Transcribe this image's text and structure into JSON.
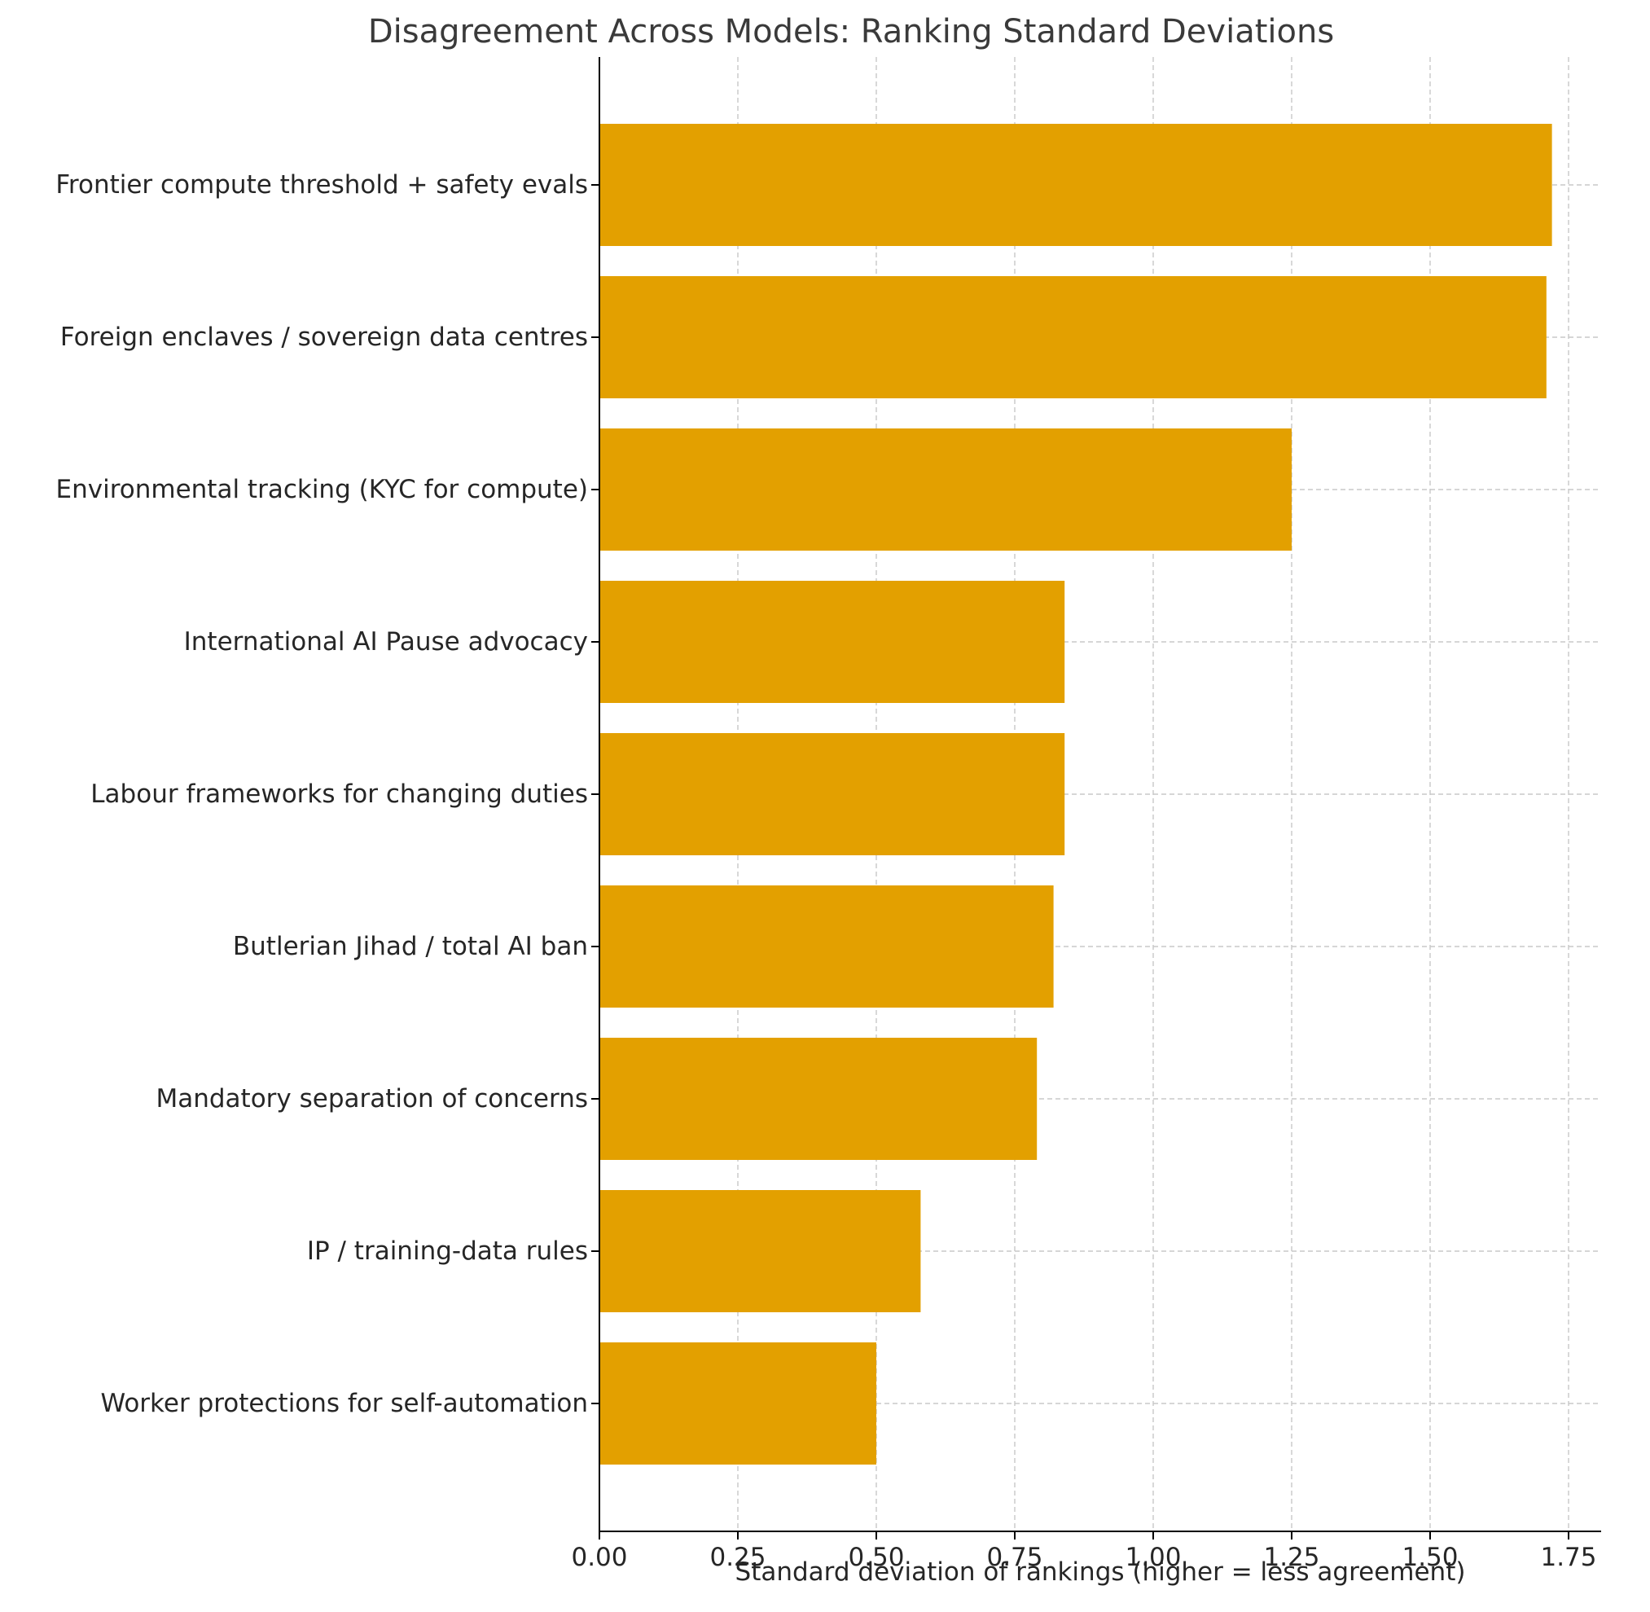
{
  "chart_data": {
    "type": "bar",
    "orientation": "horizontal",
    "title": "Disagreement Across Models: Ranking Standard Deviations",
    "xlabel": "Standard deviation of rankings (higher = less agreement)",
    "ylabel": "",
    "xlim": [
      0,
      1.8
    ],
    "xticks": [
      0.0,
      0.25,
      0.5,
      0.75,
      1.0,
      1.25,
      1.5,
      1.75
    ],
    "xtick_labels": [
      "0.00",
      "0.25",
      "0.50",
      "0.75",
      "1.00",
      "1.25",
      "1.50",
      "1.75"
    ],
    "grid": true,
    "bar_color": "#E3A000",
    "categories": [
      "Frontier compute threshold + safety evals",
      "Foreign enclaves / sovereign data centres",
      "Environmental tracking (KYC for compute)",
      "International AI Pause advocacy",
      "Labour frameworks for changing duties",
      "Butlerian Jihad / total AI ban",
      "Mandatory separation of concerns",
      "IP / training-data rules",
      "Worker protections for self-automation"
    ],
    "values": [
      1.72,
      1.71,
      1.25,
      0.84,
      0.84,
      0.82,
      0.79,
      0.58,
      0.5
    ]
  }
}
